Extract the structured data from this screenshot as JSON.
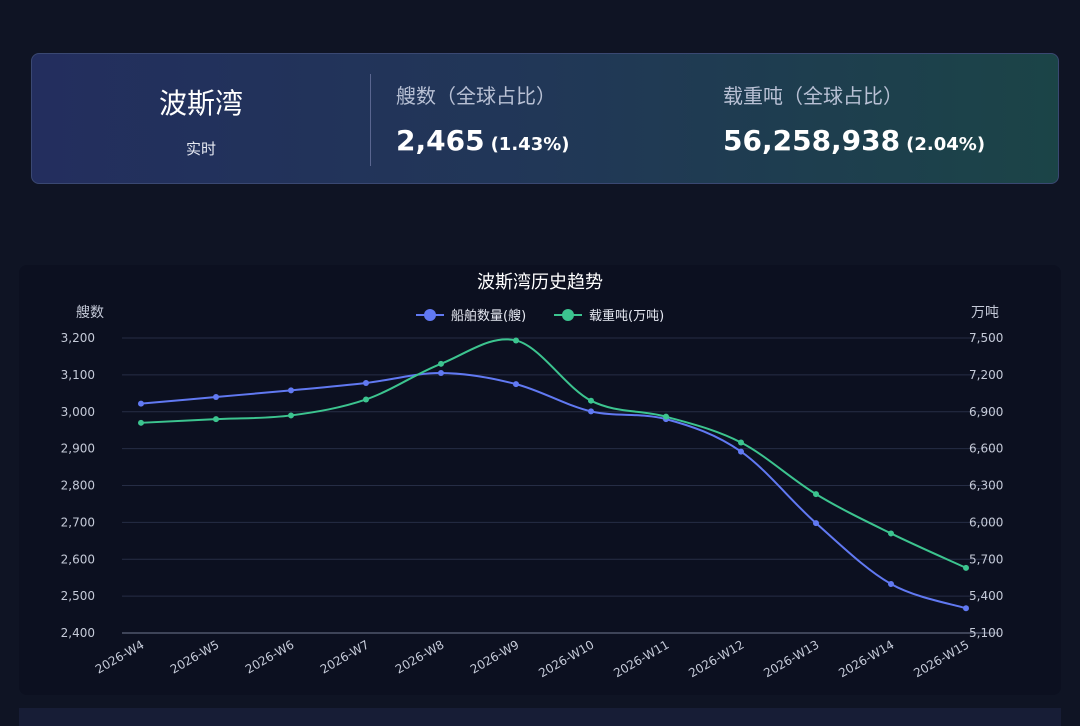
{
  "summary": {
    "region": "波斯湾",
    "mode": "实时",
    "ships_label": "艘数（全球占比）",
    "ships_value": "2,465",
    "ships_share": "(1.43%)",
    "dwt_label": "载重吨（全球占比）",
    "dwt_value": "56,258,938",
    "dwt_share": "(2.04%)"
  },
  "colors": {
    "ships_series": "#6179f2",
    "dwt_series": "#3cc48f",
    "grid": "#262d45",
    "axis_text": "#c5cad8"
  },
  "chart_data": {
    "type": "line",
    "title": "波斯湾历史趋势",
    "y_left_label": "艘数",
    "y_right_label": "万吨",
    "x": [
      "2026-W4",
      "2026-W5",
      "2026-W6",
      "2026-W7",
      "2026-W8",
      "2026-W9",
      "2026-W10",
      "2026-W11",
      "2026-W12",
      "2026-W13",
      "2026-W14",
      "2026-W15"
    ],
    "y_left_ticks": [
      "2,400",
      "2,500",
      "2,600",
      "2,700",
      "2,800",
      "2,900",
      "3,000",
      "3,100",
      "3,200"
    ],
    "y_right_ticks": [
      "5,100",
      "5,400",
      "5,700",
      "6,000",
      "6,300",
      "6,600",
      "6,900",
      "7,200",
      "7,500"
    ],
    "y_left_range": [
      2400,
      3200
    ],
    "y_right_range": [
      5100,
      7500
    ],
    "legend_position": "top-center",
    "grid": true,
    "series": [
      {
        "name": "船舶数量(艘)",
        "axis": "left",
        "values": [
          3022,
          3040,
          3058,
          3078,
          3105,
          3075,
          3001,
          2980,
          2892,
          2698,
          2533,
          2467
        ]
      },
      {
        "name": "载重吨(万吨)",
        "axis": "right",
        "values": [
          6810,
          6840,
          6870,
          7000,
          7290,
          7480,
          6990,
          6860,
          6650,
          6230,
          5910,
          5630
        ]
      }
    ]
  }
}
